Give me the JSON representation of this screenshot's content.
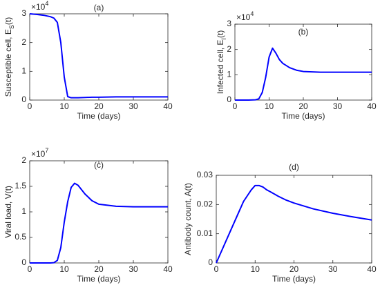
{
  "chart_data": [
    {
      "type": "line",
      "title": "(a)",
      "xlabel": "Time (days)",
      "ylabel": "Susceptible cell, E",
      "ylabel_sub": "S",
      "ylabel_tail": "(t)",
      "y_scale_base": "×10",
      "y_scale_exponent": "4",
      "x": [
        0,
        2,
        4,
        6,
        7,
        8,
        9,
        10,
        11,
        12,
        13,
        14,
        16,
        18,
        20,
        25,
        30,
        35,
        40
      ],
      "series": [
        {
          "name": "E_S",
          "color": "#0000ff",
          "values": [
            3,
            2.98,
            2.95,
            2.9,
            2.85,
            2.7,
            2.0,
            0.8,
            0.12,
            0.08,
            0.08,
            0.08,
            0.09,
            0.1,
            0.1,
            0.11,
            0.11,
            0.11,
            0.11
          ]
        }
      ],
      "xlim": [
        0,
        40
      ],
      "xticks": [
        0,
        10,
        20,
        30,
        40
      ],
      "ylim": [
        0,
        3
      ],
      "yticks": [
        0,
        1,
        2,
        3
      ]
    },
    {
      "type": "line",
      "title": "(b)",
      "xlabel": "Time (days)",
      "ylabel": "Infected cell, E",
      "ylabel_sub": "I",
      "ylabel_tail": "(t)",
      "y_scale_base": "×10",
      "y_scale_exponent": "4",
      "x": [
        0,
        2,
        4,
        6,
        7,
        8,
        9,
        10,
        11,
        12,
        13,
        14,
        16,
        18,
        20,
        25,
        30,
        35,
        40
      ],
      "series": [
        {
          "name": "E_I",
          "color": "#0000ff",
          "values": [
            0,
            0,
            0,
            0.01,
            0.05,
            0.3,
            0.9,
            1.7,
            2.05,
            1.85,
            1.6,
            1.45,
            1.28,
            1.18,
            1.13,
            1.1,
            1.1,
            1.1,
            1.1
          ]
        }
      ],
      "xlim": [
        0,
        40
      ],
      "xticks": [
        0,
        10,
        20,
        30,
        40
      ],
      "ylim": [
        0,
        3
      ],
      "yticks": [
        0,
        1,
        2,
        3
      ]
    },
    {
      "type": "line",
      "title": "(c)",
      "xlabel": "Time (days)",
      "ylabel": "Viral load,  V(t)",
      "y_scale_base": "×10",
      "y_scale_exponent": "7",
      "x": [
        0,
        2,
        4,
        6,
        7,
        8,
        9,
        10,
        11,
        12,
        13,
        14,
        16,
        18,
        20,
        25,
        30,
        35,
        40
      ],
      "series": [
        {
          "name": "V",
          "color": "#0000ff",
          "values": [
            0,
            0,
            0,
            0,
            0.005,
            0.05,
            0.3,
            0.8,
            1.2,
            1.48,
            1.56,
            1.52,
            1.35,
            1.22,
            1.15,
            1.11,
            1.1,
            1.1,
            1.1
          ]
        }
      ],
      "xlim": [
        0,
        40
      ],
      "xticks": [
        0,
        10,
        20,
        30,
        40
      ],
      "ylim": [
        0,
        2
      ],
      "yticks": [
        0,
        0.5,
        1,
        1.5,
        2
      ]
    },
    {
      "type": "line",
      "title": "(d)",
      "xlabel": "Time (days)",
      "ylabel": "Antibody count, A(t)",
      "x": [
        0,
        2,
        4,
        6,
        7,
        8,
        9,
        10,
        11,
        12,
        13,
        14,
        16,
        18,
        20,
        25,
        30,
        35,
        40
      ],
      "series": [
        {
          "name": "A",
          "color": "#0000ff",
          "values": [
            0,
            0.006,
            0.012,
            0.018,
            0.021,
            0.023,
            0.025,
            0.0265,
            0.0265,
            0.026,
            0.025,
            0.0243,
            0.0228,
            0.0215,
            0.0205,
            0.0185,
            0.017,
            0.0158,
            0.0147
          ]
        }
      ],
      "xlim": [
        0,
        40
      ],
      "xticks": [
        0,
        10,
        20,
        30,
        40
      ],
      "ylim": [
        0,
        0.03
      ],
      "yticks": [
        0,
        0.01,
        0.02,
        0.03
      ]
    }
  ]
}
